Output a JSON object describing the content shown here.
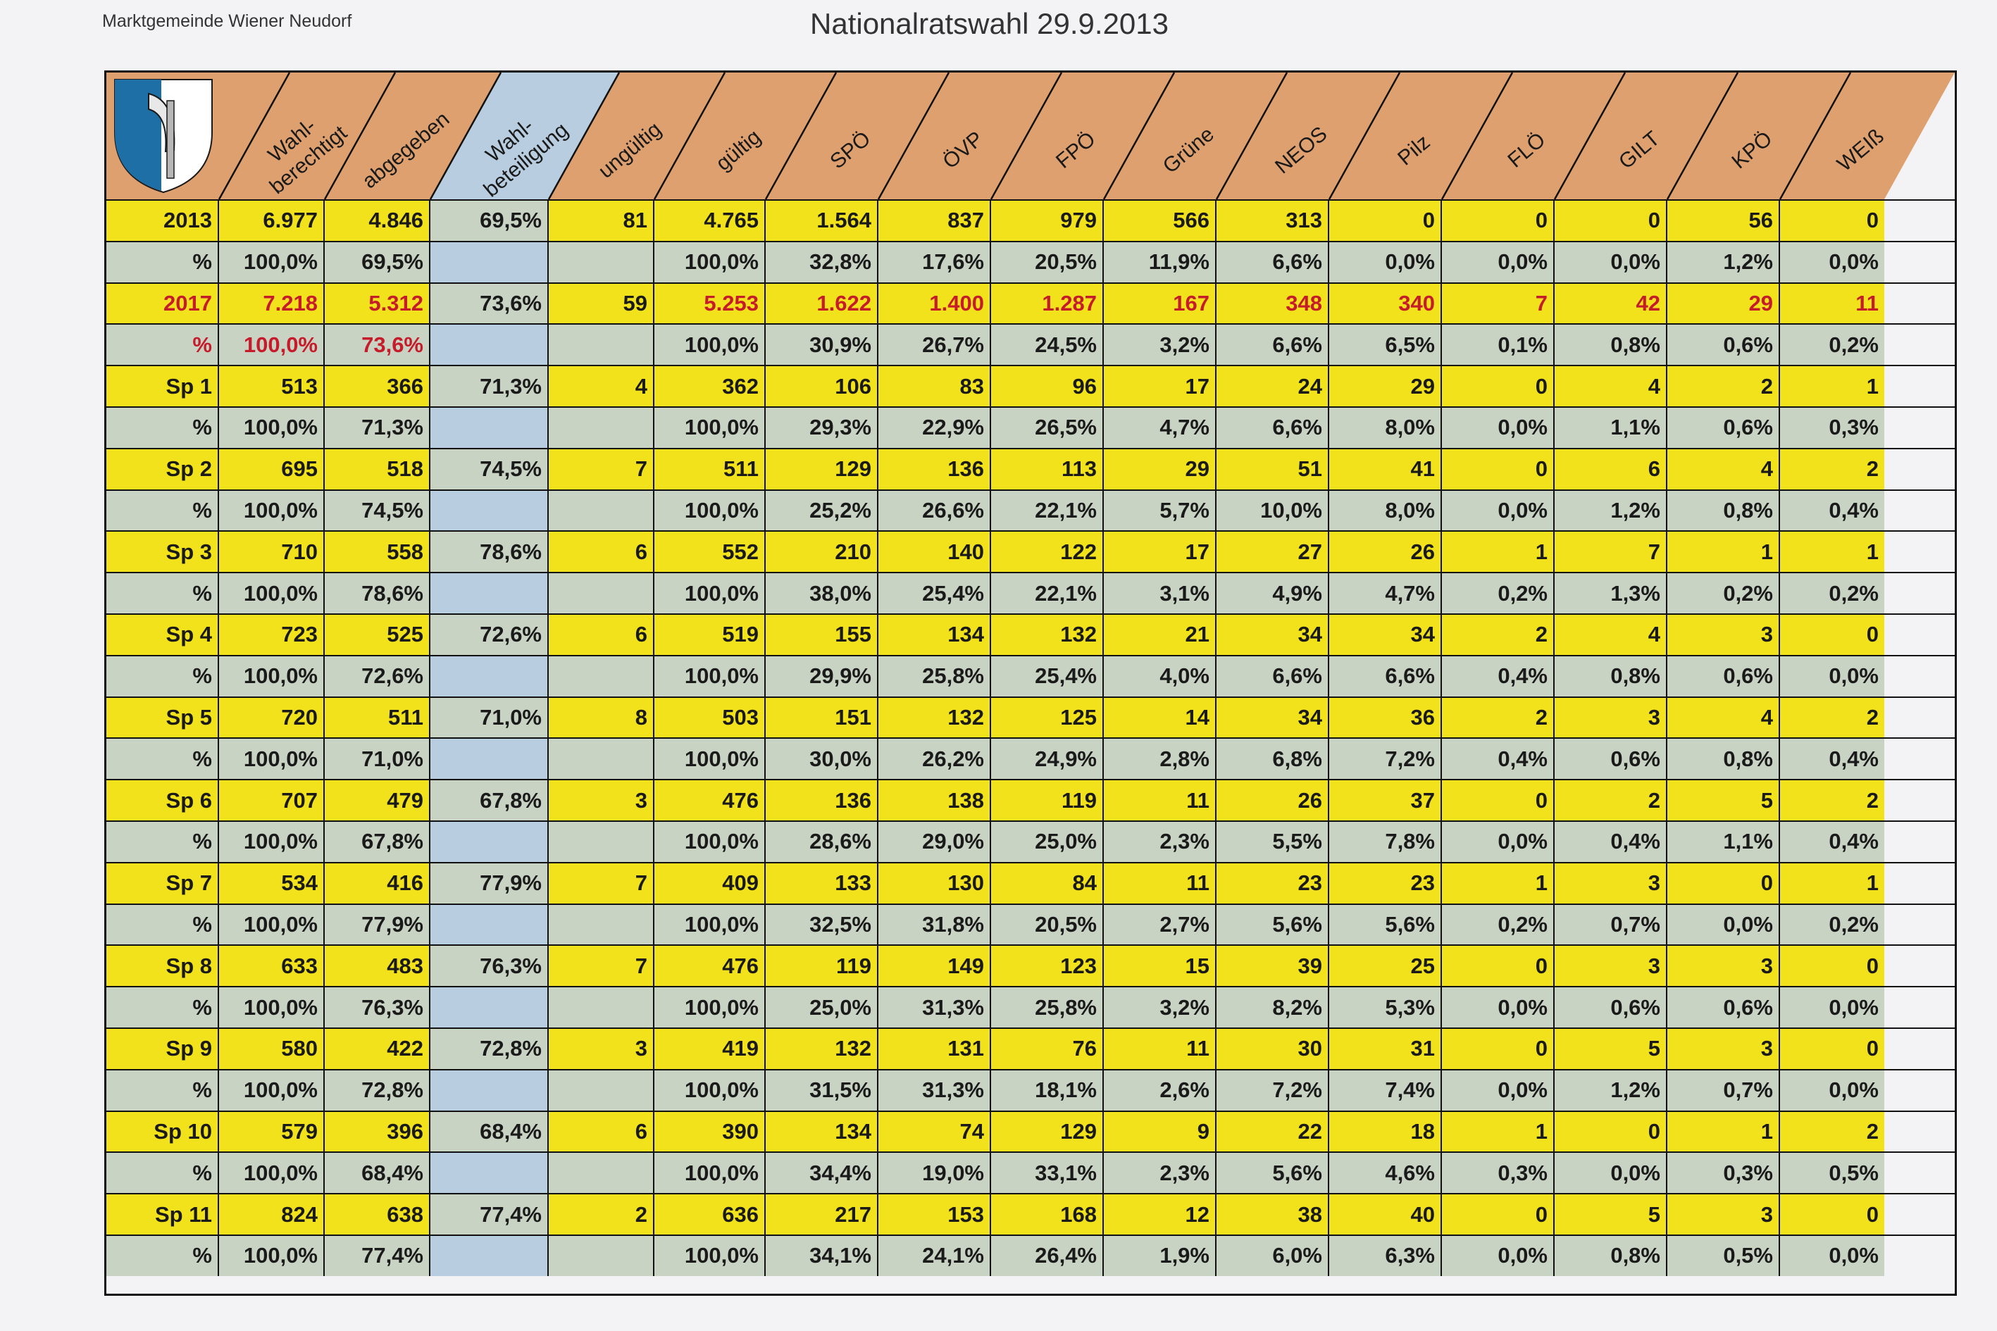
{
  "header": {
    "org": "Marktgemeinde Wiener Neudorf",
    "title": "Nationalratswahl 29.9.2013"
  },
  "columns": [
    {
      "label": "",
      "wrap": []
    },
    {
      "label": "Wahl-berechtigt",
      "wrap": [
        "Wahl-",
        "berechtigt"
      ]
    },
    {
      "label": "abgegeben",
      "wrap": [
        "abgegeben"
      ]
    },
    {
      "label": "Wahl-beteiligung",
      "wrap": [
        "Wahl-",
        "beteiligung"
      ]
    },
    {
      "label": "ungültig",
      "wrap": [
        "ungültig"
      ]
    },
    {
      "label": "gültig",
      "wrap": [
        "gültig"
      ]
    },
    {
      "label": "SPÖ",
      "wrap": [
        "SPÖ"
      ]
    },
    {
      "label": "ÖVP",
      "wrap": [
        "ÖVP"
      ]
    },
    {
      "label": "FPÖ",
      "wrap": [
        "FPÖ"
      ]
    },
    {
      "label": "Grüne",
      "wrap": [
        "Grüne"
      ]
    },
    {
      "label": "NEOS",
      "wrap": [
        "NEOS"
      ]
    },
    {
      "label": "Pilz",
      "wrap": [
        "Pilz"
      ]
    },
    {
      "label": "FLÖ",
      "wrap": [
        "FLÖ"
      ]
    },
    {
      "label": "GILT",
      "wrap": [
        "GILT"
      ]
    },
    {
      "label": "KPÖ",
      "wrap": [
        "KPÖ"
      ]
    },
    {
      "label": "WEIß",
      "wrap": [
        "WEIß"
      ]
    }
  ],
  "rows": [
    {
      "kind": "count",
      "red": false,
      "cells": [
        "2013",
        "6.977",
        "4.846",
        "69,5%",
        "81",
        "4.765",
        "1.564",
        "837",
        "979",
        "566",
        "313",
        "0",
        "0",
        "0",
        "56",
        "0"
      ]
    },
    {
      "kind": "pct",
      "red": false,
      "cells": [
        "%",
        "100,0%",
        "69,5%",
        "",
        "",
        "100,0%",
        "32,8%",
        "17,6%",
        "20,5%",
        "11,9%",
        "6,6%",
        "0,0%",
        "0,0%",
        "0,0%",
        "1,2%",
        "0,0%"
      ]
    },
    {
      "kind": "count",
      "red": true,
      "cells": [
        "2017",
        "7.218",
        "5.312",
        "73,6%",
        "59",
        "5.253",
        "1.622",
        "1.400",
        "1.287",
        "167",
        "348",
        "340",
        "7",
        "42",
        "29",
        "11"
      ]
    },
    {
      "kind": "pct",
      "red": true,
      "cells": [
        "%",
        "100,0%",
        "73,6%",
        "",
        "",
        "100,0%",
        "30,9%",
        "26,7%",
        "24,5%",
        "3,2%",
        "6,6%",
        "6,5%",
        "0,1%",
        "0,8%",
        "0,6%",
        "0,2%"
      ]
    },
    {
      "kind": "count",
      "red": false,
      "cells": [
        "Sp 1",
        "513",
        "366",
        "71,3%",
        "4",
        "362",
        "106",
        "83",
        "96",
        "17",
        "24",
        "29",
        "0",
        "4",
        "2",
        "1"
      ]
    },
    {
      "kind": "pct",
      "red": false,
      "cells": [
        "%",
        "100,0%",
        "71,3%",
        "",
        "",
        "100,0%",
        "29,3%",
        "22,9%",
        "26,5%",
        "4,7%",
        "6,6%",
        "8,0%",
        "0,0%",
        "1,1%",
        "0,6%",
        "0,3%"
      ]
    },
    {
      "kind": "count",
      "red": false,
      "cells": [
        "Sp 2",
        "695",
        "518",
        "74,5%",
        "7",
        "511",
        "129",
        "136",
        "113",
        "29",
        "51",
        "41",
        "0",
        "6",
        "4",
        "2"
      ]
    },
    {
      "kind": "pct",
      "red": false,
      "cells": [
        "%",
        "100,0%",
        "74,5%",
        "",
        "",
        "100,0%",
        "25,2%",
        "26,6%",
        "22,1%",
        "5,7%",
        "10,0%",
        "8,0%",
        "0,0%",
        "1,2%",
        "0,8%",
        "0,4%"
      ]
    },
    {
      "kind": "count",
      "red": false,
      "cells": [
        "Sp 3",
        "710",
        "558",
        "78,6%",
        "6",
        "552",
        "210",
        "140",
        "122",
        "17",
        "27",
        "26",
        "1",
        "7",
        "1",
        "1"
      ]
    },
    {
      "kind": "pct",
      "red": false,
      "cells": [
        "%",
        "100,0%",
        "78,6%",
        "",
        "",
        "100,0%",
        "38,0%",
        "25,4%",
        "22,1%",
        "3,1%",
        "4,9%",
        "4,7%",
        "0,2%",
        "1,3%",
        "0,2%",
        "0,2%"
      ]
    },
    {
      "kind": "count",
      "red": false,
      "cells": [
        "Sp 4",
        "723",
        "525",
        "72,6%",
        "6",
        "519",
        "155",
        "134",
        "132",
        "21",
        "34",
        "34",
        "2",
        "4",
        "3",
        "0"
      ]
    },
    {
      "kind": "pct",
      "red": false,
      "cells": [
        "%",
        "100,0%",
        "72,6%",
        "",
        "",
        "100,0%",
        "29,9%",
        "25,8%",
        "25,4%",
        "4,0%",
        "6,6%",
        "6,6%",
        "0,4%",
        "0,8%",
        "0,6%",
        "0,0%"
      ]
    },
    {
      "kind": "count",
      "red": false,
      "cells": [
        "Sp 5",
        "720",
        "511",
        "71,0%",
        "8",
        "503",
        "151",
        "132",
        "125",
        "14",
        "34",
        "36",
        "2",
        "3",
        "4",
        "2"
      ]
    },
    {
      "kind": "pct",
      "red": false,
      "cells": [
        "%",
        "100,0%",
        "71,0%",
        "",
        "",
        "100,0%",
        "30,0%",
        "26,2%",
        "24,9%",
        "2,8%",
        "6,8%",
        "7,2%",
        "0,4%",
        "0,6%",
        "0,8%",
        "0,4%"
      ]
    },
    {
      "kind": "count",
      "red": false,
      "cells": [
        "Sp 6",
        "707",
        "479",
        "67,8%",
        "3",
        "476",
        "136",
        "138",
        "119",
        "11",
        "26",
        "37",
        "0",
        "2",
        "5",
        "2"
      ]
    },
    {
      "kind": "pct",
      "red": false,
      "cells": [
        "%",
        "100,0%",
        "67,8%",
        "",
        "",
        "100,0%",
        "28,6%",
        "29,0%",
        "25,0%",
        "2,3%",
        "5,5%",
        "7,8%",
        "0,0%",
        "0,4%",
        "1,1%",
        "0,4%"
      ]
    },
    {
      "kind": "count",
      "red": false,
      "cells": [
        "Sp 7",
        "534",
        "416",
        "77,9%",
        "7",
        "409",
        "133",
        "130",
        "84",
        "11",
        "23",
        "23",
        "1",
        "3",
        "0",
        "1"
      ]
    },
    {
      "kind": "pct",
      "red": false,
      "cells": [
        "%",
        "100,0%",
        "77,9%",
        "",
        "",
        "100,0%",
        "32,5%",
        "31,8%",
        "20,5%",
        "2,7%",
        "5,6%",
        "5,6%",
        "0,2%",
        "0,7%",
        "0,0%",
        "0,2%"
      ]
    },
    {
      "kind": "count",
      "red": false,
      "cells": [
        "Sp 8",
        "633",
        "483",
        "76,3%",
        "7",
        "476",
        "119",
        "149",
        "123",
        "15",
        "39",
        "25",
        "0",
        "3",
        "3",
        "0"
      ]
    },
    {
      "kind": "pct",
      "red": false,
      "cells": [
        "%",
        "100,0%",
        "76,3%",
        "",
        "",
        "100,0%",
        "25,0%",
        "31,3%",
        "25,8%",
        "3,2%",
        "8,2%",
        "5,3%",
        "0,0%",
        "0,6%",
        "0,6%",
        "0,0%"
      ]
    },
    {
      "kind": "count",
      "red": false,
      "cells": [
        "Sp 9",
        "580",
        "422",
        "72,8%",
        "3",
        "419",
        "132",
        "131",
        "76",
        "11",
        "30",
        "31",
        "0",
        "5",
        "3",
        "0"
      ]
    },
    {
      "kind": "pct",
      "red": false,
      "cells": [
        "%",
        "100,0%",
        "72,8%",
        "",
        "",
        "100,0%",
        "31,5%",
        "31,3%",
        "18,1%",
        "2,6%",
        "7,2%",
        "7,4%",
        "0,0%",
        "1,2%",
        "0,7%",
        "0,0%"
      ]
    },
    {
      "kind": "count",
      "red": false,
      "cells": [
        "Sp 10",
        "579",
        "396",
        "68,4%",
        "6",
        "390",
        "134",
        "74",
        "129",
        "9",
        "22",
        "18",
        "1",
        "0",
        "1",
        "2"
      ]
    },
    {
      "kind": "pct",
      "red": false,
      "cells": [
        "%",
        "100,0%",
        "68,4%",
        "",
        "",
        "100,0%",
        "34,4%",
        "19,0%",
        "33,1%",
        "2,3%",
        "5,6%",
        "4,6%",
        "0,3%",
        "0,0%",
        "0,3%",
        "0,5%"
      ]
    },
    {
      "kind": "count",
      "red": false,
      "cells": [
        "Sp 11",
        "824",
        "638",
        "77,4%",
        "2",
        "636",
        "217",
        "153",
        "168",
        "12",
        "38",
        "40",
        "0",
        "5",
        "3",
        "0"
      ]
    },
    {
      "kind": "pct",
      "red": false,
      "cells": [
        "%",
        "100,0%",
        "77,4%",
        "",
        "",
        "100,0%",
        "34,1%",
        "24,1%",
        "26,4%",
        "1,9%",
        "6,0%",
        "6,3%",
        "0,0%",
        "0,8%",
        "0,5%",
        "0,0%"
      ]
    }
  ],
  "colors": {
    "yellow": "#f1e21b",
    "grey_green": "#c9d3c4",
    "light_blue": "#b8cde0",
    "header_orange": "#dfa070",
    "red_text": "#c51b2a",
    "crest_blue": "#1d6fa5"
  },
  "crest_icon": "coat-of-arms-axe-icon"
}
